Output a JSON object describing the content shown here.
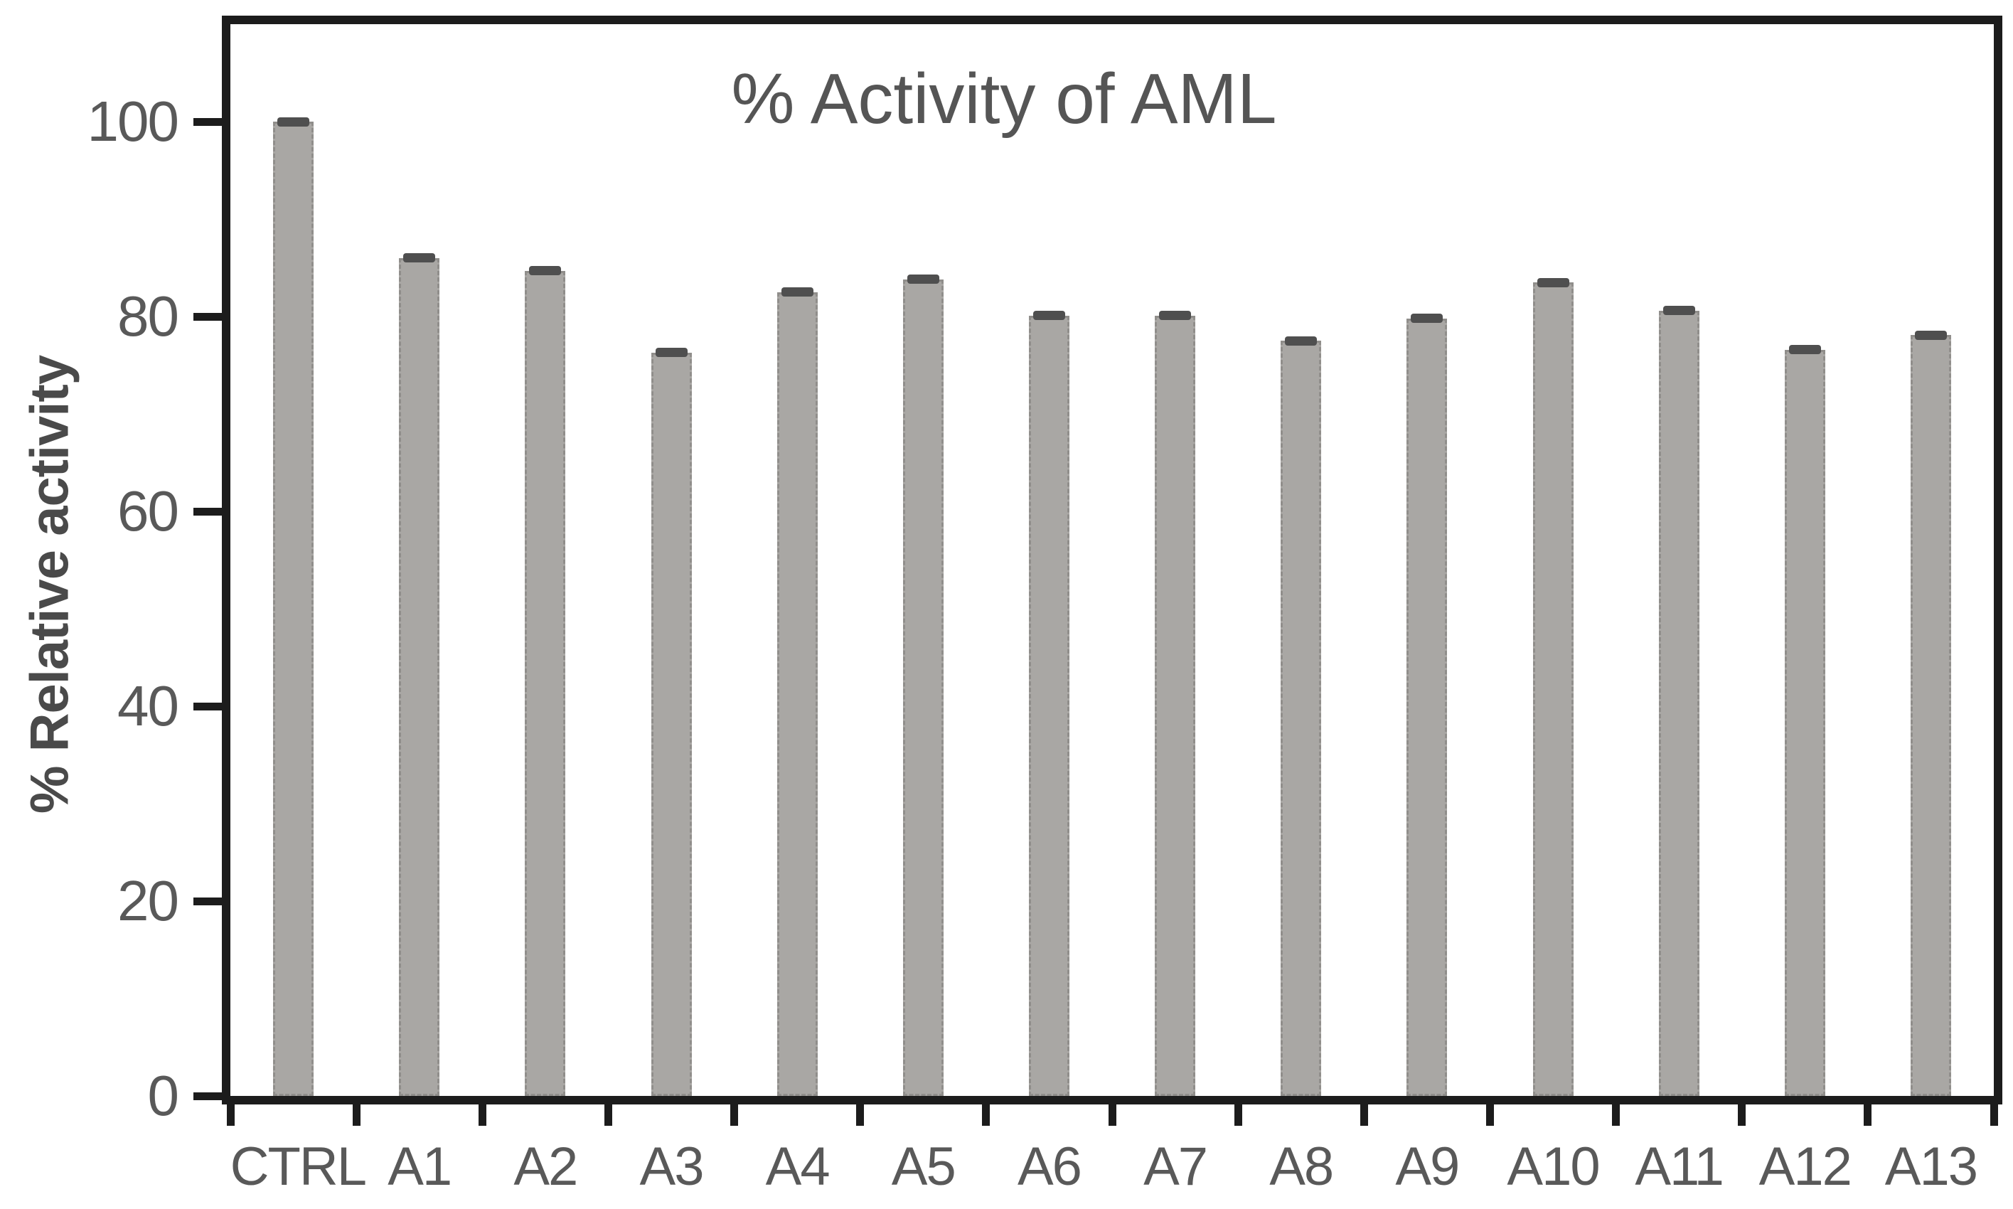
{
  "chart_data": {
    "type": "bar",
    "title": "% Activity of AML",
    "xlabel": "",
    "ylabel": "% Relative activity",
    "categories": [
      "CTRL",
      "A1",
      "A2",
      "A3",
      "A4",
      "A5",
      "A6",
      "A7",
      "A8",
      "A9",
      "A10",
      "A11",
      "A12",
      "A13"
    ],
    "values": [
      100,
      86,
      84.7,
      76.3,
      82.5,
      83.8,
      80.1,
      80.1,
      77.5,
      79.8,
      83.5,
      80.6,
      76.6,
      78.1
    ],
    "errors": [
      0.5,
      0.5,
      0.5,
      0.5,
      0.5,
      0.5,
      0.5,
      0.5,
      0.5,
      0.5,
      0.5,
      0.5,
      0.5,
      0.5
    ],
    "y_ticks": [
      0,
      20,
      40,
      60,
      80,
      100
    ],
    "ylim": [
      0,
      110
    ],
    "grid": false,
    "legend": false,
    "colors": {
      "bar_fill": "#a9a7a4",
      "error_cap": "#4f4f4f",
      "axis": "#1c1c1c",
      "tick_text": "#595959",
      "title_text": "#555555",
      "ylabel_text": "#4a4a4a",
      "background": "#ffffff"
    }
  }
}
